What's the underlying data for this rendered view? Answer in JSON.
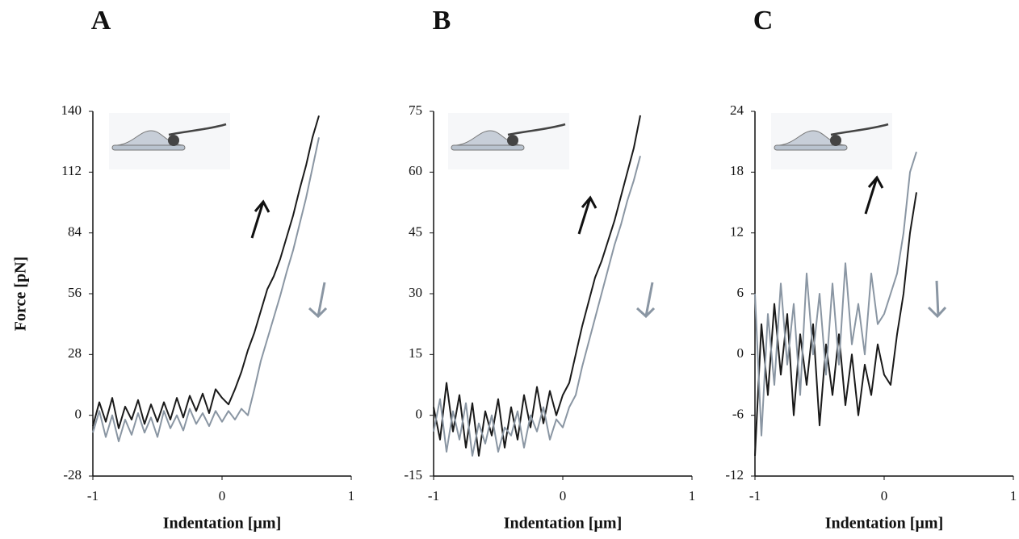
{
  "chart_data": [
    {
      "type": "line",
      "title": "A",
      "x_label": "Indentation [µm]",
      "y_label": "Force [pN]",
      "xlim": [
        -1,
        1
      ],
      "xticks": [
        -1,
        0,
        1
      ],
      "ylim": [
        -28,
        140
      ],
      "yticks": [
        -28,
        0,
        28,
        56,
        84,
        112,
        140
      ],
      "x": [
        -1,
        -0.95,
        -0.9,
        -0.85,
        -0.8,
        -0.75,
        -0.7,
        -0.65,
        -0.6,
        -0.55,
        -0.5,
        -0.45,
        -0.4,
        -0.35,
        -0.3,
        -0.25,
        -0.2,
        -0.15,
        -0.1,
        -0.05,
        0,
        0.05,
        0.1,
        0.15,
        0.2,
        0.25,
        0.3,
        0.35,
        0.4,
        0.45,
        0.5,
        0.55,
        0.6,
        0.65,
        0.7,
        0.75
      ],
      "series": [
        {
          "color": "#1a1a1a",
          "values": [
            -5,
            6,
            -3,
            8,
            -6,
            4,
            -2,
            7,
            -4,
            5,
            -3,
            6,
            -2,
            8,
            -1,
            9,
            2,
            10,
            1,
            12,
            8,
            5,
            12,
            20,
            30,
            38,
            48,
            58,
            64,
            72,
            82,
            92,
            104,
            115,
            128,
            138
          ]
        },
        {
          "color": "#8a96a3",
          "values": [
            -8,
            2,
            -10,
            0,
            -12,
            -2,
            -9,
            1,
            -8,
            -1,
            -10,
            2,
            -6,
            0,
            -7,
            3,
            -4,
            1,
            -5,
            2,
            -3,
            2,
            -2,
            3,
            0,
            12,
            25,
            35,
            45,
            55,
            66,
            76,
            88,
            100,
            114,
            128
          ]
        }
      ]
    },
    {
      "type": "line",
      "title": "B",
      "x_label": "Indentation [µm]",
      "xlim": [
        -1,
        1
      ],
      "xticks": [
        -1,
        0,
        1
      ],
      "ylim": [
        -15,
        75
      ],
      "yticks": [
        -15,
        0,
        15,
        30,
        45,
        60,
        75
      ],
      "x": [
        -1,
        -0.95,
        -0.9,
        -0.85,
        -0.8,
        -0.75,
        -0.7,
        -0.65,
        -0.6,
        -0.55,
        -0.5,
        -0.45,
        -0.4,
        -0.35,
        -0.3,
        -0.25,
        -0.2,
        -0.15,
        -0.1,
        -0.05,
        0,
        0.05,
        0.1,
        0.15,
        0.2,
        0.25,
        0.3,
        0.35,
        0.4,
        0.45,
        0.5,
        0.55,
        0.6
      ],
      "series": [
        {
          "color": "#1a1a1a",
          "values": [
            2,
            -6,
            8,
            -4,
            5,
            -8,
            3,
            -10,
            1,
            -5,
            4,
            -8,
            2,
            -6,
            5,
            -3,
            7,
            -2,
            6,
            0,
            5,
            8,
            15,
            22,
            28,
            34,
            38,
            43,
            48,
            54,
            60,
            66,
            74
          ]
        },
        {
          "color": "#8a96a3",
          "values": [
            -4,
            4,
            -9,
            1,
            -6,
            3,
            -10,
            -2,
            -7,
            0,
            -9,
            -3,
            -5,
            1,
            -8,
            0,
            -4,
            2,
            -6,
            -1,
            -3,
            2,
            5,
            12,
            18,
            24,
            30,
            36,
            42,
            47,
            53,
            58,
            64
          ]
        }
      ]
    },
    {
      "type": "line",
      "title": "C",
      "x_label": "Indentation [µm]",
      "xlim": [
        -1,
        1
      ],
      "xticks": [
        -1,
        0,
        1
      ],
      "ylim": [
        -12,
        24
      ],
      "yticks": [
        -12,
        -6,
        0,
        6,
        12,
        18,
        24
      ],
      "x": [
        -1,
        -0.95,
        -0.9,
        -0.85,
        -0.8,
        -0.75,
        -0.7,
        -0.65,
        -0.6,
        -0.55,
        -0.5,
        -0.45,
        -0.4,
        -0.35,
        -0.3,
        -0.25,
        -0.2,
        -0.15,
        -0.1,
        -0.05,
        0,
        0.05,
        0.1,
        0.15,
        0.2,
        0.25
      ],
      "series": [
        {
          "color": "#1a1a1a",
          "values": [
            -10,
            3,
            -4,
            5,
            -2,
            4,
            -6,
            2,
            -3,
            3,
            -7,
            1,
            -4,
            2,
            -5,
            0,
            -6,
            -1,
            -4,
            1,
            -2,
            -3,
            2,
            6,
            12,
            16
          ]
        },
        {
          "color": "#8a96a3",
          "values": [
            6,
            -8,
            4,
            -3,
            7,
            -1,
            5,
            -4,
            8,
            0,
            6,
            -2,
            7,
            -1,
            9,
            1,
            5,
            0,
            8,
            3,
            4,
            6,
            8,
            12,
            18,
            20
          ]
        }
      ]
    }
  ]
}
